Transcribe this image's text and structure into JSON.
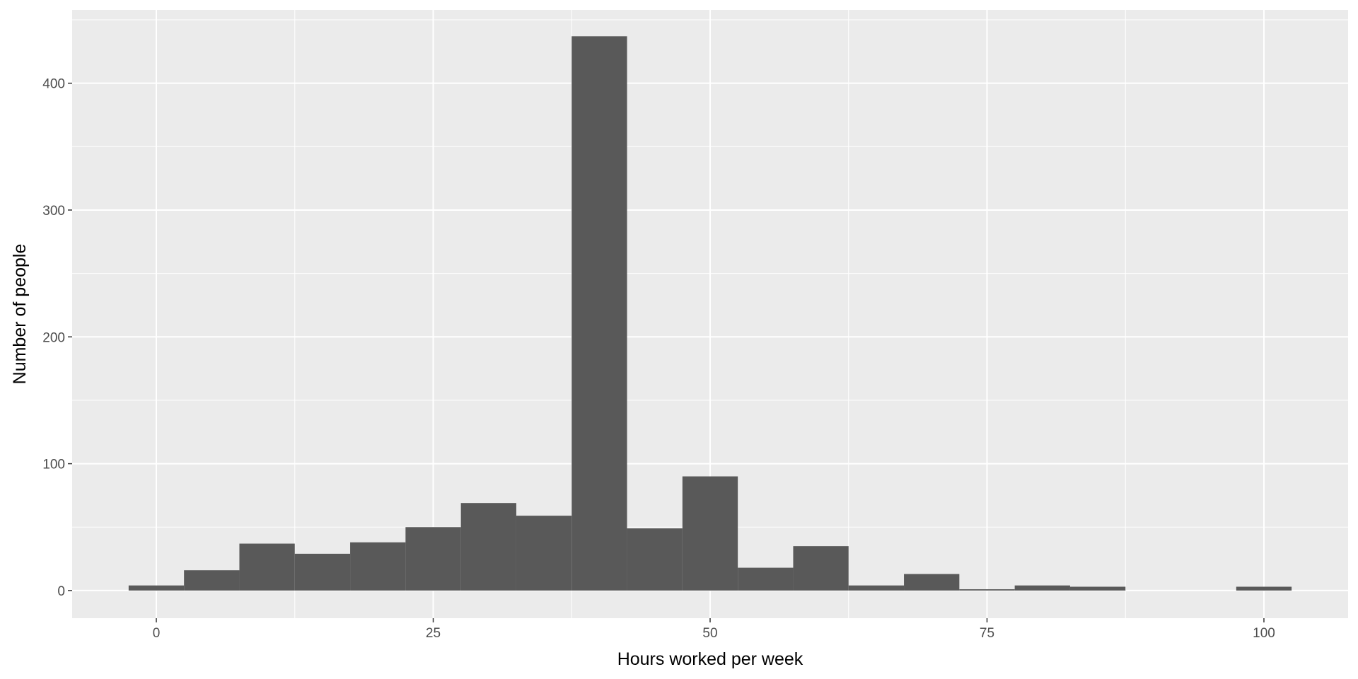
{
  "chart_data": {
    "type": "bar",
    "xlabel": "Hours worked per week",
    "ylabel": "Number of people",
    "xlim": [
      -7.6,
      107.6
    ],
    "ylim": [
      -21.8,
      457.8
    ],
    "x_ticks": [
      0,
      25,
      50,
      75,
      100
    ],
    "y_ticks": [
      0,
      100,
      200,
      300,
      400
    ],
    "grid": true,
    "bin_width": 5,
    "bins": [
      {
        "x": 0,
        "count": 4
      },
      {
        "x": 5,
        "count": 16
      },
      {
        "x": 10,
        "count": 37
      },
      {
        "x": 15,
        "count": 29
      },
      {
        "x": 20,
        "count": 38
      },
      {
        "x": 25,
        "count": 50
      },
      {
        "x": 30,
        "count": 69
      },
      {
        "x": 35,
        "count": 59
      },
      {
        "x": 40,
        "count": 437
      },
      {
        "x": 45,
        "count": 49
      },
      {
        "x": 50,
        "count": 90
      },
      {
        "x": 55,
        "count": 18
      },
      {
        "x": 60,
        "count": 35
      },
      {
        "x": 65,
        "count": 4
      },
      {
        "x": 70,
        "count": 13
      },
      {
        "x": 75,
        "count": 1
      },
      {
        "x": 80,
        "count": 4
      },
      {
        "x": 85,
        "count": 3
      },
      {
        "x": 90,
        "count": 0
      },
      {
        "x": 95,
        "count": 0
      },
      {
        "x": 100,
        "count": 3
      }
    ],
    "colors": {
      "panel": "#ebebeb",
      "grid_major": "#ffffff",
      "bar": "#595959",
      "tick_text": "#4d4d4d",
      "tick_mark": "#333333"
    }
  }
}
